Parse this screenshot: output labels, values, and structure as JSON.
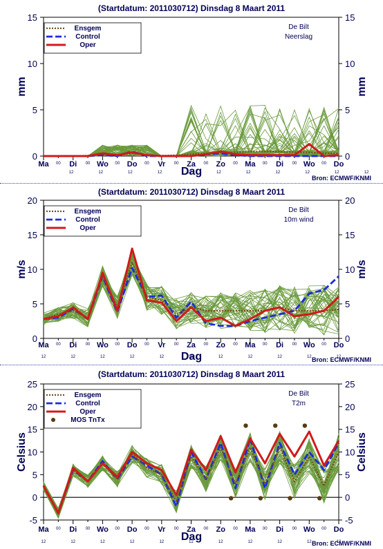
{
  "colors": {
    "ensemble": "#6a9a3c",
    "ensgem": "#7a4a1a",
    "control": "#1a2be0",
    "oper": "#d01a1a",
    "mos": "#5a3a10",
    "text": "#000055",
    "axis": "#000000",
    "zero": "#000000"
  },
  "chart_data": [
    {
      "type": "line",
      "title": "(Startdatum: 2011030712)   Dinsdag    8 Maart     2011",
      "ylabel": "mm",
      "ylabel_right": "mm",
      "xlabel": "Dag",
      "station": "De Bilt",
      "variable": "Neerslag",
      "source": "Bron: ECMWF/KNMI",
      "ylim": [
        0,
        15
      ],
      "yticks": [
        0,
        5,
        10,
        15
      ],
      "xlim": [
        0,
        20
      ],
      "xticks": [
        {
          "x": 0,
          "label": "Ma"
        },
        {
          "x": 1,
          "label": "00"
        },
        {
          "x": 2,
          "label": "Di"
        },
        {
          "x": 3,
          "label": "00"
        },
        {
          "x": 4,
          "label": "Wo"
        },
        {
          "x": 5,
          "label": "00"
        },
        {
          "x": 6,
          "label": "Do"
        },
        {
          "x": 7,
          "label": "00"
        },
        {
          "x": 8,
          "label": "Vr"
        },
        {
          "x": 9,
          "label": "00"
        },
        {
          "x": 10,
          "label": "Za"
        },
        {
          "x": 11,
          "label": "00"
        },
        {
          "x": 12,
          "label": "Zo"
        },
        {
          "x": 13,
          "label": "00"
        },
        {
          "x": 14,
          "label": "Ma"
        },
        {
          "x": 15,
          "label": "00"
        },
        {
          "x": 16,
          "label": "Di"
        },
        {
          "x": 17,
          "label": "00"
        },
        {
          "x": 18,
          "label": "Wo"
        },
        {
          "x": 19,
          "label": "00"
        },
        {
          "x": 20,
          "label": "Do"
        }
      ],
      "subticks": [
        {
          "x": 0,
          "label": "12"
        },
        {
          "x": 2,
          "label": "12"
        },
        {
          "x": 4,
          "label": "12"
        },
        {
          "x": 6,
          "label": "12"
        },
        {
          "x": 8,
          "label": "12"
        },
        {
          "x": 10,
          "label": "12"
        },
        {
          "x": 12,
          "label": "12"
        },
        {
          "x": 14,
          "label": "12"
        },
        {
          "x": 16,
          "label": "12"
        },
        {
          "x": 18,
          "label": "12"
        },
        {
          "x": 20,
          "label": "12"
        }
      ],
      "series": [
        {
          "name": "Ensgem",
          "style": "dotted",
          "x": [
            0,
            1,
            2,
            3,
            4,
            5,
            6,
            7,
            8,
            9,
            10,
            11,
            12,
            13,
            14,
            15,
            16,
            17,
            18,
            19,
            20
          ],
          "values": [
            0,
            0,
            0,
            0.05,
            0.2,
            0.1,
            0.3,
            0.1,
            0.05,
            0.1,
            0.2,
            0.3,
            0.4,
            0.4,
            0.5,
            0.5,
            0.5,
            0.4,
            0.4,
            0.3,
            0.3
          ]
        },
        {
          "name": "Control",
          "style": "dashed",
          "x": [
            0,
            1,
            2,
            3,
            4,
            5,
            6,
            7,
            8,
            9,
            10,
            11,
            12,
            13,
            14,
            15,
            16,
            17,
            18,
            19,
            20
          ],
          "values": [
            0,
            0,
            0,
            0,
            0.1,
            0,
            0.5,
            0,
            0,
            0,
            0,
            0.2,
            0.3,
            0.1,
            0,
            0,
            0,
            0,
            0,
            0,
            0
          ]
        },
        {
          "name": "Oper",
          "style": "solid",
          "x": [
            0,
            1,
            2,
            3,
            4,
            5,
            6,
            7,
            8,
            9,
            10,
            11,
            12,
            13,
            14,
            15,
            16,
            17,
            18,
            19,
            20
          ],
          "values": [
            0,
            0,
            0,
            0,
            0.3,
            0.1,
            0.4,
            0.1,
            0,
            0,
            0,
            0.2,
            0.5,
            0.2,
            0.1,
            0.1,
            0.1,
            0.1,
            1.3,
            0,
            0.1
          ]
        }
      ],
      "legend": [
        {
          "series": "Ensgem",
          "label": "Ensgem"
        },
        {
          "series": "Control",
          "label": "Control"
        },
        {
          "series": "Oper",
          "label": "Oper"
        }
      ]
    },
    {
      "type": "line",
      "title": "(Startdatum: 2011030712)   Dinsdag    8 Maart     2011",
      "ylabel": "m/s",
      "ylabel_right": "m/s",
      "xlabel": "Dag",
      "station": "De Bilt",
      "variable": "10m wind",
      "source": "Bron: ECMWF/KNMI",
      "ylim": [
        0,
        20
      ],
      "yticks": [
        0,
        5,
        10,
        15,
        20
      ],
      "xlim": [
        0,
        20
      ],
      "xticks": [
        {
          "x": 0,
          "label": "Ma"
        },
        {
          "x": 1,
          "label": "00"
        },
        {
          "x": 2,
          "label": "Di"
        },
        {
          "x": 3,
          "label": "00"
        },
        {
          "x": 4,
          "label": "Wo"
        },
        {
          "x": 5,
          "label": "00"
        },
        {
          "x": 6,
          "label": "Do"
        },
        {
          "x": 7,
          "label": "00"
        },
        {
          "x": 8,
          "label": "Vr"
        },
        {
          "x": 9,
          "label": "00"
        },
        {
          "x": 10,
          "label": "Za"
        },
        {
          "x": 11,
          "label": "00"
        },
        {
          "x": 12,
          "label": "Zo"
        },
        {
          "x": 13,
          "label": "00"
        },
        {
          "x": 14,
          "label": "Ma"
        },
        {
          "x": 15,
          "label": "00"
        },
        {
          "x": 16,
          "label": "Di"
        },
        {
          "x": 17,
          "label": "00"
        },
        {
          "x": 18,
          "label": "Wo"
        },
        {
          "x": 19,
          "label": "00"
        },
        {
          "x": 20,
          "label": "Do"
        }
      ],
      "subticks": [
        {
          "x": 0,
          "label": "12"
        },
        {
          "x": 2,
          "label": "12"
        },
        {
          "x": 4,
          "label": "12"
        },
        {
          "x": 6,
          "label": "12"
        },
        {
          "x": 8,
          "label": "12"
        },
        {
          "x": 10,
          "label": "12"
        },
        {
          "x": 12,
          "label": "12"
        },
        {
          "x": 14,
          "label": "12"
        },
        {
          "x": 16,
          "label": "12"
        },
        {
          "x": 18,
          "label": "12"
        },
        {
          "x": 20,
          "label": "12"
        }
      ],
      "series": [
        {
          "name": "Ensgem",
          "style": "dotted",
          "x": [
            0,
            1,
            2,
            3,
            4,
            5,
            6,
            7,
            8,
            9,
            10,
            11,
            12,
            13,
            14,
            15,
            16,
            17,
            18,
            19,
            20
          ],
          "values": [
            2.8,
            3.5,
            4.0,
            3.0,
            9.0,
            4.5,
            11.0,
            6.0,
            5.5,
            3.5,
            4.5,
            4.0,
            4.0,
            4.0,
            4.0,
            4.0,
            4.5,
            4.0,
            4.0,
            4.0,
            4.2
          ]
        },
        {
          "name": "Control",
          "style": "dashed",
          "x": [
            0,
            1,
            2,
            3,
            4,
            5,
            6,
            7,
            8,
            9,
            10,
            11,
            12,
            13,
            14,
            15,
            16,
            17,
            18,
            19,
            20
          ],
          "values": [
            2.8,
            3.0,
            4.3,
            2.8,
            9.0,
            3.8,
            10.2,
            6.0,
            6.2,
            3.0,
            5.3,
            2.2,
            1.8,
            1.8,
            2.5,
            3.0,
            3.5,
            4.0,
            6.5,
            7.0,
            9.0
          ]
        },
        {
          "name": "Oper",
          "style": "solid",
          "x": [
            0,
            1,
            2,
            3,
            4,
            5,
            6,
            7,
            8,
            9,
            10,
            11,
            12,
            13,
            14,
            15,
            16,
            17,
            18,
            19,
            20
          ],
          "values": [
            2.8,
            3.2,
            4.5,
            2.8,
            9.5,
            4.0,
            13.0,
            5.5,
            5.2,
            2.5,
            4.5,
            2.5,
            3.0,
            1.8,
            2.8,
            4.0,
            4.5,
            3.2,
            3.5,
            4.0,
            6.0
          ]
        }
      ],
      "legend": [
        {
          "series": "Ensgem",
          "label": "Ensgem"
        },
        {
          "series": "Control",
          "label": "Control"
        },
        {
          "series": "Oper",
          "label": "Oper"
        }
      ]
    },
    {
      "type": "line",
      "title": "(Startdatum: 2011030712)   Dinsdag    8 Maart     2011",
      "ylabel": "Celsius",
      "ylabel_right": "Celsius",
      "xlabel": "Dag",
      "station": "De Bilt",
      "variable": "T2m",
      "source": "Bron: ECMWF/KNMI",
      "ylim": [
        -5,
        25
      ],
      "yticks": [
        -5,
        0,
        5,
        10,
        15,
        20,
        25
      ],
      "xlim": [
        0,
        20
      ],
      "xticks": [
        {
          "x": 0,
          "label": "Ma"
        },
        {
          "x": 1,
          "label": "00"
        },
        {
          "x": 2,
          "label": "Di"
        },
        {
          "x": 3,
          "label": "00"
        },
        {
          "x": 4,
          "label": "Wo"
        },
        {
          "x": 5,
          "label": "00"
        },
        {
          "x": 6,
          "label": "Do"
        },
        {
          "x": 7,
          "label": "00"
        },
        {
          "x": 8,
          "label": "Vr"
        },
        {
          "x": 9,
          "label": "00"
        },
        {
          "x": 10,
          "label": "Za"
        },
        {
          "x": 11,
          "label": "00"
        },
        {
          "x": 12,
          "label": "Zo"
        },
        {
          "x": 13,
          "label": "00"
        },
        {
          "x": 14,
          "label": "Ma"
        },
        {
          "x": 15,
          "label": "00"
        },
        {
          "x": 16,
          "label": "Di"
        },
        {
          "x": 17,
          "label": "00"
        },
        {
          "x": 18,
          "label": "Wo"
        },
        {
          "x": 19,
          "label": "00"
        },
        {
          "x": 20,
          "label": "Do"
        }
      ],
      "subticks": [
        {
          "x": 0,
          "label": "12"
        },
        {
          "x": 2,
          "label": "12"
        },
        {
          "x": 4,
          "label": "12"
        },
        {
          "x": 6,
          "label": "12"
        },
        {
          "x": 8,
          "label": "12"
        },
        {
          "x": 10,
          "label": "12"
        },
        {
          "x": 12,
          "label": "12"
        },
        {
          "x": 14,
          "label": "12"
        },
        {
          "x": 16,
          "label": "12"
        },
        {
          "x": 18,
          "label": "12"
        },
        {
          "x": 20,
          "label": "12"
        }
      ],
      "series": [
        {
          "name": "Ensgem",
          "style": "dotted",
          "x": [
            0,
            1,
            2,
            3,
            4,
            5,
            6,
            7,
            8,
            9,
            10,
            11,
            12,
            13,
            14,
            15,
            16,
            17,
            18,
            19,
            20
          ],
          "values": [
            2.5,
            -3.5,
            6.0,
            3.5,
            7.5,
            4.0,
            9.5,
            6.5,
            5.0,
            -1.0,
            9.0,
            4.0,
            11.0,
            3.0,
            11.0,
            3.0,
            11.0,
            3.5,
            9.0,
            2.5,
            10.0
          ]
        },
        {
          "name": "Control",
          "style": "dashed",
          "x": [
            0,
            1,
            2,
            3,
            4,
            5,
            6,
            7,
            8,
            9,
            10,
            11,
            12,
            13,
            14,
            15,
            16,
            17,
            18,
            19,
            20
          ],
          "values": [
            2.5,
            -3.5,
            6.0,
            3.5,
            8.0,
            4.0,
            9.0,
            7.0,
            5.0,
            -2.0,
            10.0,
            4.0,
            12.0,
            2.0,
            13.0,
            2.0,
            12.0,
            5.0,
            10.0,
            6.0,
            12.0
          ]
        },
        {
          "name": "Oper",
          "style": "solid",
          "x": [
            0,
            1,
            2,
            3,
            4,
            5,
            6,
            7,
            8,
            9,
            10,
            11,
            12,
            13,
            14,
            15,
            16,
            17,
            18,
            19,
            20
          ],
          "values": [
            2.5,
            -3.5,
            6.5,
            3.5,
            7.5,
            4.5,
            10.0,
            7.5,
            6.0,
            0.5,
            10.5,
            6.0,
            13.5,
            5.5,
            13.0,
            7.5,
            14.0,
            9.0,
            14.5,
            7.0,
            12.5
          ]
        }
      ],
      "mos": {
        "name": "MOS TnTx",
        "x": [
          12.7,
          13.7,
          14.7,
          15.7,
          16.7,
          17.7,
          18.7
        ],
        "values": [
          -0.2,
          15.8,
          -0.2,
          15.8,
          -0.2,
          15.8,
          -0.2
        ]
      },
      "legend": [
        {
          "series": "Ensgem",
          "label": "Ensgem"
        },
        {
          "series": "Control",
          "label": "Control"
        },
        {
          "series": "Oper",
          "label": "Oper"
        },
        {
          "series": "MOS",
          "label": "MOS TnTx"
        }
      ]
    }
  ]
}
